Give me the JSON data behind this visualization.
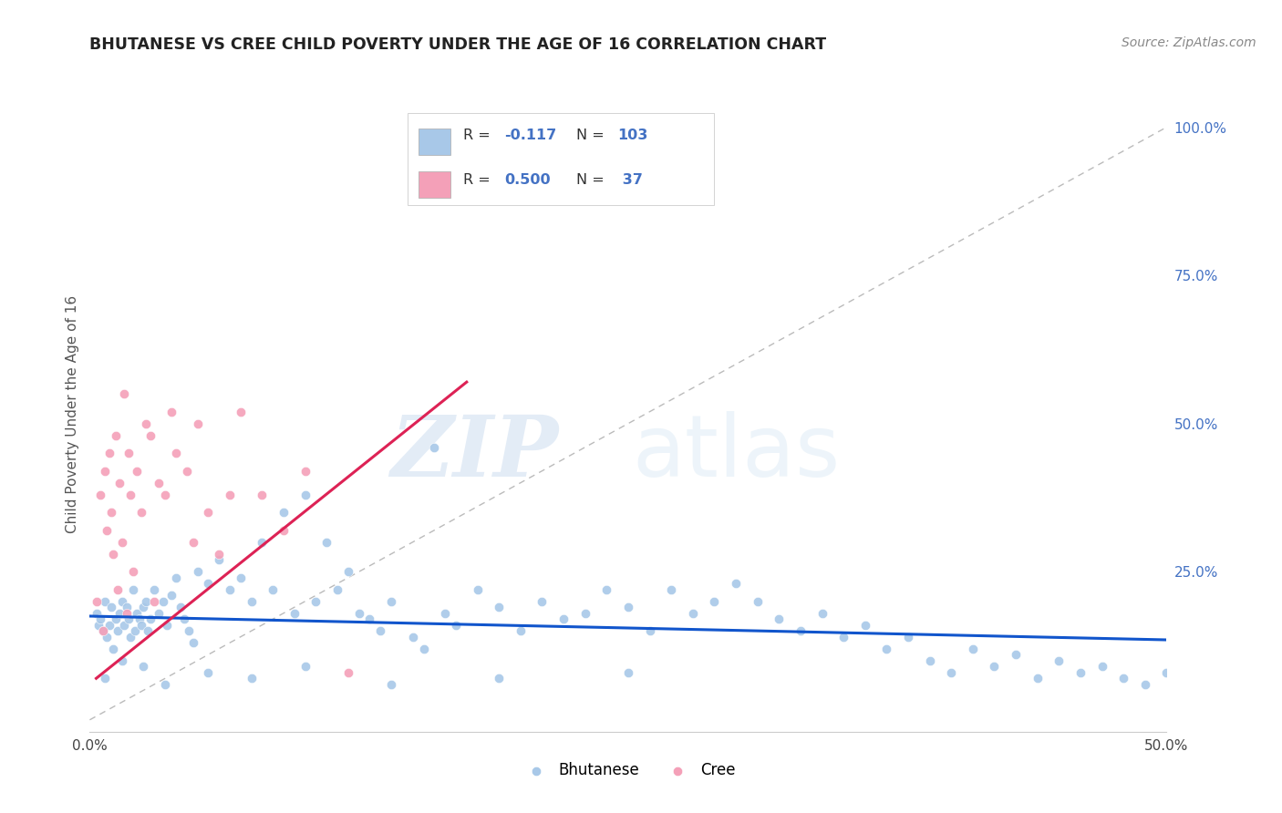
{
  "title": "BHUTANESE VS CREE CHILD POVERTY UNDER THE AGE OF 16 CORRELATION CHART",
  "source": "Source: ZipAtlas.com",
  "ylabel": "Child Poverty Under the Age of 16",
  "xlim": [
    0.0,
    0.5
  ],
  "ylim": [
    -0.02,
    1.05
  ],
  "y_ticks_right": [
    0.0,
    0.25,
    0.5,
    0.75,
    1.0
  ],
  "y_tick_labels_right": [
    "",
    "25.0%",
    "50.0%",
    "75.0%",
    "100.0%"
  ],
  "bhutanese_R": -0.117,
  "bhutanese_N": 103,
  "cree_R": 0.5,
  "cree_N": 37,
  "bhutanese_color": "#a8c8e8",
  "cree_color": "#f4a0b8",
  "bhutanese_line_color": "#1155cc",
  "cree_line_color": "#dd2255",
  "diagonal_color": "#bbbbbb",
  "grid_color": "#e8e8e8",
  "background_color": "#ffffff",
  "watermark_zip": "ZIP",
  "watermark_atlas": "atlas",
  "bhutanese_x": [
    0.003,
    0.004,
    0.005,
    0.006,
    0.007,
    0.008,
    0.009,
    0.01,
    0.011,
    0.012,
    0.013,
    0.014,
    0.015,
    0.016,
    0.017,
    0.018,
    0.019,
    0.02,
    0.021,
    0.022,
    0.023,
    0.024,
    0.025,
    0.026,
    0.027,
    0.028,
    0.03,
    0.032,
    0.034,
    0.036,
    0.038,
    0.04,
    0.042,
    0.044,
    0.046,
    0.048,
    0.05,
    0.055,
    0.06,
    0.065,
    0.07,
    0.075,
    0.08,
    0.085,
    0.09,
    0.095,
    0.1,
    0.105,
    0.11,
    0.115,
    0.12,
    0.125,
    0.13,
    0.135,
    0.14,
    0.15,
    0.155,
    0.16,
    0.165,
    0.17,
    0.18,
    0.19,
    0.2,
    0.21,
    0.22,
    0.23,
    0.24,
    0.25,
    0.26,
    0.27,
    0.28,
    0.29,
    0.3,
    0.31,
    0.32,
    0.33,
    0.34,
    0.35,
    0.36,
    0.37,
    0.38,
    0.39,
    0.4,
    0.41,
    0.42,
    0.43,
    0.44,
    0.45,
    0.46,
    0.47,
    0.48,
    0.49,
    0.5,
    0.007,
    0.015,
    0.025,
    0.035,
    0.055,
    0.075,
    0.1,
    0.14,
    0.19,
    0.25
  ],
  "bhutanese_y": [
    0.18,
    0.16,
    0.17,
    0.15,
    0.2,
    0.14,
    0.16,
    0.19,
    0.12,
    0.17,
    0.15,
    0.18,
    0.2,
    0.16,
    0.19,
    0.17,
    0.14,
    0.22,
    0.15,
    0.18,
    0.17,
    0.16,
    0.19,
    0.2,
    0.15,
    0.17,
    0.22,
    0.18,
    0.2,
    0.16,
    0.21,
    0.24,
    0.19,
    0.17,
    0.15,
    0.13,
    0.25,
    0.23,
    0.27,
    0.22,
    0.24,
    0.2,
    0.3,
    0.22,
    0.35,
    0.18,
    0.38,
    0.2,
    0.3,
    0.22,
    0.25,
    0.18,
    0.17,
    0.15,
    0.2,
    0.14,
    0.12,
    0.46,
    0.18,
    0.16,
    0.22,
    0.19,
    0.15,
    0.2,
    0.17,
    0.18,
    0.22,
    0.19,
    0.15,
    0.22,
    0.18,
    0.2,
    0.23,
    0.2,
    0.17,
    0.15,
    0.18,
    0.14,
    0.16,
    0.12,
    0.14,
    0.1,
    0.08,
    0.12,
    0.09,
    0.11,
    0.07,
    0.1,
    0.08,
    0.09,
    0.07,
    0.06,
    0.08,
    0.07,
    0.1,
    0.09,
    0.06,
    0.08,
    0.07,
    0.09,
    0.06,
    0.07,
    0.08
  ],
  "cree_x": [
    0.003,
    0.005,
    0.006,
    0.007,
    0.008,
    0.009,
    0.01,
    0.011,
    0.012,
    0.013,
    0.014,
    0.015,
    0.016,
    0.017,
    0.018,
    0.019,
    0.02,
    0.022,
    0.024,
    0.026,
    0.028,
    0.03,
    0.032,
    0.035,
    0.038,
    0.04,
    0.045,
    0.048,
    0.05,
    0.055,
    0.06,
    0.065,
    0.07,
    0.08,
    0.09,
    0.1,
    0.12
  ],
  "cree_y": [
    0.2,
    0.38,
    0.15,
    0.42,
    0.32,
    0.45,
    0.35,
    0.28,
    0.48,
    0.22,
    0.4,
    0.3,
    0.55,
    0.18,
    0.45,
    0.38,
    0.25,
    0.42,
    0.35,
    0.5,
    0.48,
    0.2,
    0.4,
    0.38,
    0.52,
    0.45,
    0.42,
    0.3,
    0.5,
    0.35,
    0.28,
    0.38,
    0.52,
    0.38,
    0.32,
    0.42,
    0.08
  ],
  "bhutanese_line_x": [
    0.0,
    0.5
  ],
  "bhutanese_line_y": [
    0.175,
    0.135
  ],
  "cree_line_x": [
    0.003,
    0.175
  ],
  "cree_line_y": [
    0.07,
    0.57
  ]
}
